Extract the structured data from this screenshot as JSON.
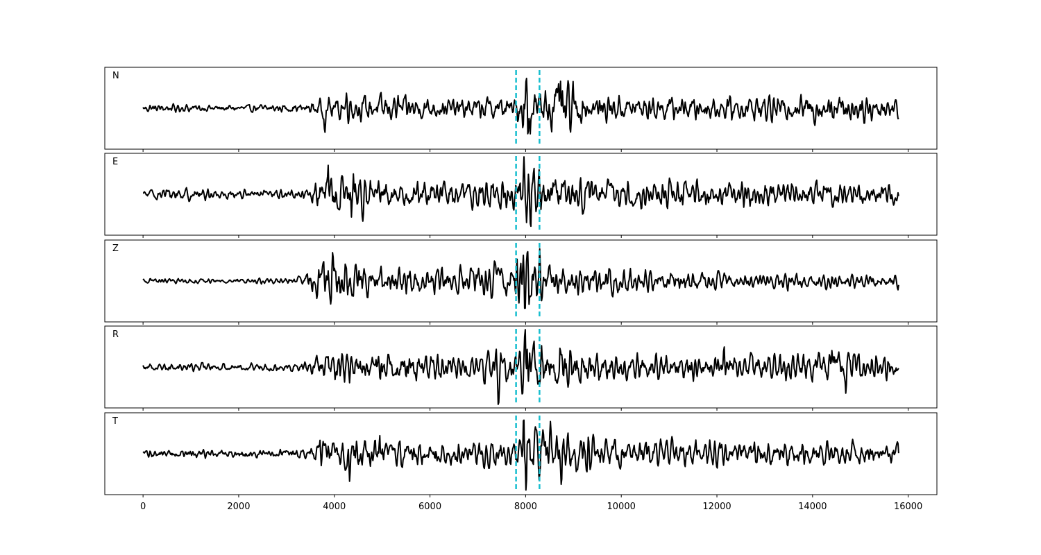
{
  "chart_data": {
    "type": "line",
    "xlim": [
      -800,
      16600
    ],
    "x_ticks": [
      0,
      2000,
      4000,
      6000,
      8000,
      10000,
      12000,
      14000,
      16000
    ],
    "x_tick_labels": [
      "0",
      "2000",
      "4000",
      "6000",
      "8000",
      "10000",
      "12000",
      "14000",
      "16000"
    ],
    "x_end": 15800,
    "grid": false,
    "colors": {
      "trace": "#000000",
      "marker": "#17becf"
    },
    "vertical_markers": [
      7800,
      8290
    ],
    "panels": [
      {
        "label": "N",
        "envelope": [
          [
            0,
            0.12
          ],
          [
            2000,
            0.1
          ],
          [
            3400,
            0.14
          ],
          [
            3800,
            0.32
          ],
          [
            5000,
            0.42
          ],
          [
            6500,
            0.28
          ],
          [
            7400,
            0.36
          ],
          [
            7800,
            0.3
          ],
          [
            8000,
            0.95
          ],
          [
            8300,
            0.55
          ],
          [
            8700,
            0.85
          ],
          [
            9400,
            0.38
          ],
          [
            11000,
            0.34
          ],
          [
            13500,
            0.36
          ],
          [
            14400,
            0.48
          ],
          [
            15800,
            0.3
          ]
        ],
        "peaks": [
          [
            8020,
            0.9
          ],
          [
            8050,
            -0.88
          ],
          [
            8730,
            0.92
          ],
          [
            8790,
            -0.6
          ],
          [
            8420,
            0.62
          ],
          [
            14390,
            0.42
          ],
          [
            4260,
            0.44
          ],
          [
            3800,
            -0.52
          ]
        ]
      },
      {
        "label": "E",
        "envelope": [
          [
            0,
            0.12
          ],
          [
            700,
            0.22
          ],
          [
            900,
            0.18
          ],
          [
            2000,
            0.12
          ],
          [
            3400,
            0.16
          ],
          [
            3800,
            0.55
          ],
          [
            4400,
            0.6
          ],
          [
            5200,
            0.38
          ],
          [
            6700,
            0.42
          ],
          [
            7500,
            0.48
          ],
          [
            7800,
            0.45
          ],
          [
            8000,
            0.95
          ],
          [
            8200,
            0.6
          ],
          [
            8600,
            0.55
          ],
          [
            9800,
            0.45
          ],
          [
            11000,
            0.4
          ],
          [
            15800,
            0.32
          ]
        ],
        "peaks": [
          [
            7970,
            0.95
          ],
          [
            7990,
            -0.9
          ],
          [
            8130,
            0.6
          ],
          [
            8400,
            -0.58
          ],
          [
            3870,
            0.58
          ],
          [
            4360,
            -0.55
          ],
          [
            4400,
            0.62
          ]
        ]
      },
      {
        "label": "Z",
        "envelope": [
          [
            0,
            0.08
          ],
          [
            2000,
            0.06
          ],
          [
            3300,
            0.12
          ],
          [
            3600,
            0.5
          ],
          [
            4100,
            0.75
          ],
          [
            4400,
            0.55
          ],
          [
            5000,
            0.4
          ],
          [
            6700,
            0.34
          ],
          [
            7500,
            0.55
          ],
          [
            7800,
            0.7
          ],
          [
            8000,
            0.95
          ],
          [
            8300,
            0.6
          ],
          [
            8800,
            0.35
          ],
          [
            9900,
            0.38
          ],
          [
            11000,
            0.25
          ],
          [
            15800,
            0.18
          ]
        ],
        "peaks": [
          [
            3960,
            0.8
          ],
          [
            4050,
            -0.6
          ],
          [
            7820,
            0.85
          ],
          [
            7990,
            -0.92
          ],
          [
            7960,
            0.88
          ],
          [
            8300,
            0.58
          ],
          [
            7490,
            0.55
          ]
        ]
      },
      {
        "label": "R",
        "envelope": [
          [
            0,
            0.12
          ],
          [
            2000,
            0.1
          ],
          [
            3400,
            0.14
          ],
          [
            3800,
            0.45
          ],
          [
            5200,
            0.48
          ],
          [
            6800,
            0.32
          ],
          [
            7400,
            0.55
          ],
          [
            7800,
            0.45
          ],
          [
            8000,
            0.95
          ],
          [
            8300,
            0.7
          ],
          [
            8700,
            0.6
          ],
          [
            9500,
            0.42
          ],
          [
            12000,
            0.34
          ],
          [
            14400,
            0.45
          ],
          [
            15800,
            0.3
          ]
        ],
        "peaks": [
          [
            7990,
            0.88
          ],
          [
            8010,
            -0.95
          ],
          [
            7430,
            -0.72
          ],
          [
            8270,
            -0.6
          ],
          [
            8720,
            0.62
          ],
          [
            12150,
            0.55
          ],
          [
            14700,
            -0.5
          ],
          [
            14410,
            0.52
          ]
        ]
      },
      {
        "label": "T",
        "envelope": [
          [
            0,
            0.12
          ],
          [
            2000,
            0.12
          ],
          [
            3400,
            0.16
          ],
          [
            3800,
            0.4
          ],
          [
            4400,
            0.55
          ],
          [
            5200,
            0.38
          ],
          [
            6800,
            0.34
          ],
          [
            7600,
            0.4
          ],
          [
            7800,
            0.35
          ],
          [
            8000,
            0.92
          ],
          [
            8400,
            0.75
          ],
          [
            8800,
            0.65
          ],
          [
            10000,
            0.4
          ],
          [
            15800,
            0.3
          ]
        ],
        "peaks": [
          [
            7960,
            0.88
          ],
          [
            8010,
            -0.92
          ],
          [
            8750,
            -0.72
          ],
          [
            8520,
            0.62
          ],
          [
            4320,
            -0.62
          ],
          [
            4950,
            0.55
          ],
          [
            3700,
            0.45
          ]
        ]
      }
    ]
  }
}
